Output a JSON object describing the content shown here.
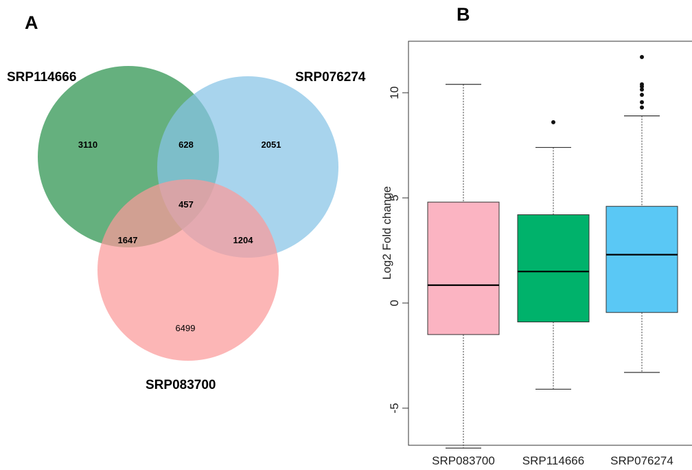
{
  "panels": {
    "a": {
      "label": "A"
    },
    "b": {
      "label": "B"
    }
  },
  "chart_data": [
    {
      "type": "venn",
      "sets": [
        {
          "name": "SRP114666",
          "color": "#3a9a5a"
        },
        {
          "name": "SRP076274",
          "color": "#86c3e6"
        },
        {
          "name": "SRP083700",
          "color": "#fb9a9a"
        }
      ],
      "regions": {
        "SRP114666_only": 3110,
        "SRP076274_only": 2051,
        "SRP083700_only": 6499,
        "SRP114666_SRP076274": 628,
        "SRP114666_SRP083700": 1647,
        "SRP076274_SRP083700": 1204,
        "all_three": 457
      }
    },
    {
      "type": "box",
      "categories": [
        "SRP083700",
        "SRP114666",
        "SRP076274"
      ],
      "ylabel": "Log2 Fold change",
      "ylim": [
        -7,
        12.5
      ],
      "yticks": [
        -5,
        0,
        5,
        10
      ],
      "grid": false,
      "boxes": [
        {
          "category": "SRP083700",
          "color": "#fbb4c2",
          "whisker_low": -6.9,
          "q1": -1.5,
          "median": 0.85,
          "q3": 4.8,
          "whisker_high": 10.4,
          "outliers": []
        },
        {
          "category": "SRP114666",
          "color": "#00b26b",
          "whisker_low": -4.1,
          "q1": -0.9,
          "median": 1.5,
          "q3": 4.2,
          "whisker_high": 7.4,
          "outliers": [
            8.6
          ]
        },
        {
          "category": "SRP076274",
          "color": "#5ac8f5",
          "whisker_low": -3.3,
          "q1": -0.45,
          "median": 2.3,
          "q3": 4.6,
          "whisker_high": 8.9,
          "outliers": [
            9.3,
            9.55,
            9.9,
            10.15,
            10.3,
            10.4,
            11.7
          ]
        }
      ]
    }
  ]
}
